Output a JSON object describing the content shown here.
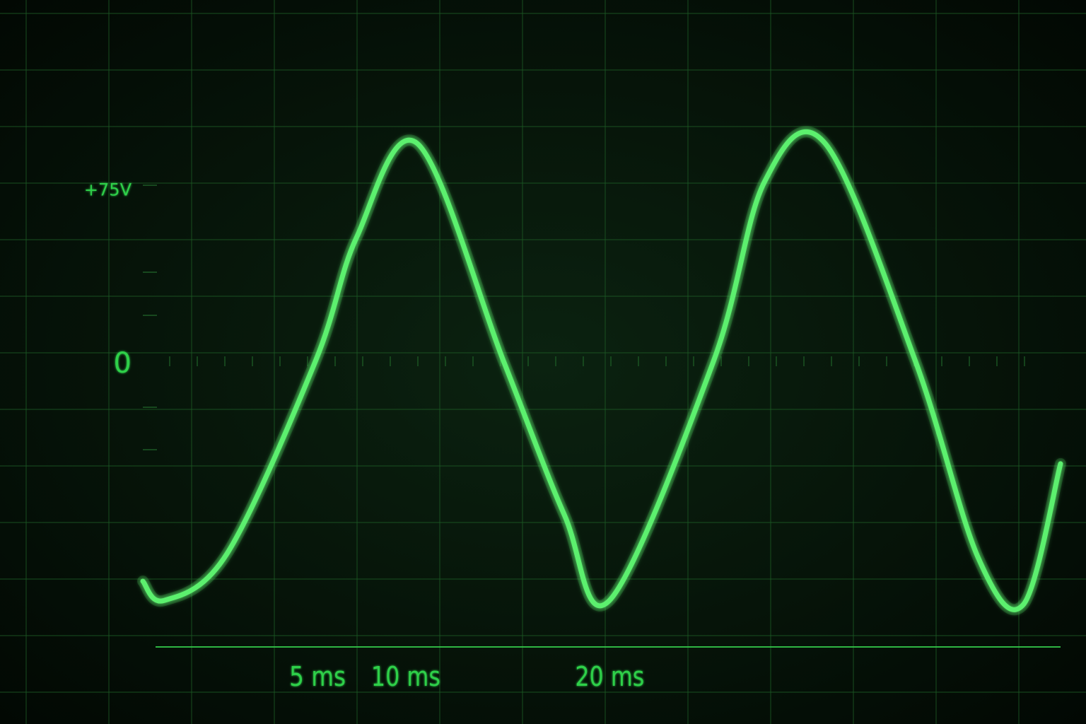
{
  "chart_data": {
    "type": "line",
    "title": "",
    "xlabel": "",
    "ylabel": "",
    "x_unit": "ms",
    "y_unit": "V",
    "xlim": [
      -8.8,
      38.0
    ],
    "ylim": [
      -130,
      130
    ],
    "grid": true,
    "legend": "none",
    "y_tick_labels": [
      {
        "value": 75,
        "label": "+75V"
      },
      {
        "value": 0,
        "label": "0"
      }
    ],
    "x_tick_labels": [
      {
        "value": 0,
        "label": "5 ms"
      },
      {
        "value": 4.5,
        "label": "10 ms"
      },
      {
        "value": 14.9,
        "label": "20 ms"
      }
    ],
    "series": [
      {
        "name": "",
        "color": "#5cf06e",
        "waveform": "sine",
        "amplitude": 103,
        "period_ms": 20.5,
        "phase_ref_ms": 0,
        "x": [
          -8.8,
          -7.7,
          -4.5,
          0.0,
          2.1,
          5.2,
          9.6,
          12.7,
          15.0,
          20.3,
          22.9,
          26.0,
          30.6,
          33.8,
          36.1,
          38.0
        ],
        "y": [
          -103,
          -112,
          -90,
          0,
          58,
          102,
          0,
          -72,
          -112,
          0,
          84,
          102,
          0,
          -92,
          -114,
          -48
        ]
      }
    ]
  },
  "colors": {
    "trace": "#5cf06e",
    "axis": "#37d24e",
    "grid": "#1d5a25",
    "text": "#2fd04a"
  }
}
